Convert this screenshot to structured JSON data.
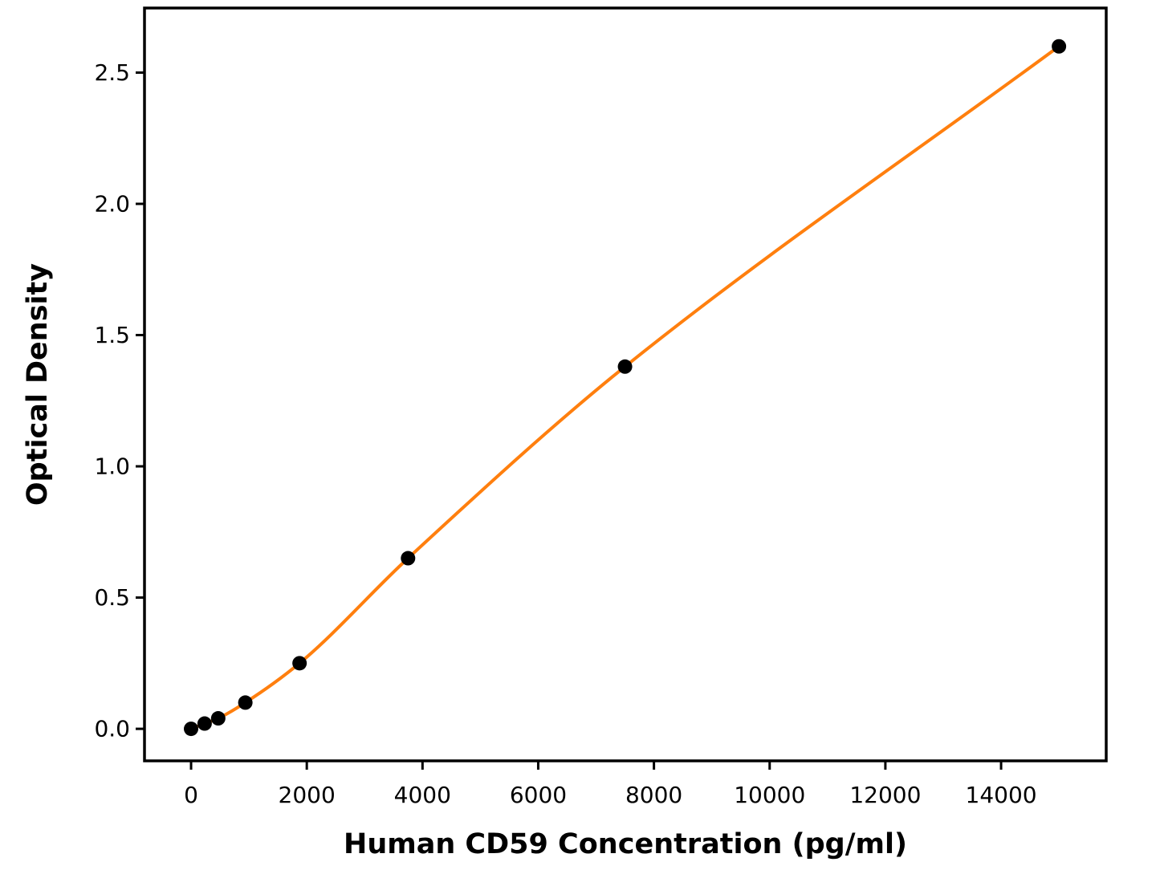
{
  "figure": {
    "background_color": "#ffffff",
    "axis_color": "#000000"
  },
  "chart_data": {
    "type": "scatter",
    "title": "",
    "xlabel": "Human CD59 Concentration (pg/ml)",
    "ylabel": "Optical Density",
    "x": [
      0,
      234,
      469,
      938,
      1875,
      3750,
      7500,
      15000
    ],
    "y": [
      0.0,
      0.02,
      0.04,
      0.1,
      0.25,
      0.65,
      1.38,
      2.6
    ],
    "series": [
      {
        "name": "standard-curve-fit",
        "style": "smooth-line",
        "color": "#ff7f0e"
      },
      {
        "name": "standard-points",
        "style": "scatter",
        "color": "#000000"
      }
    ],
    "marker_color": "#000000",
    "line_color": "#ff7f0e",
    "xlim": [
      -805,
      15817
    ],
    "ylim": [
      -0.122,
      2.746
    ],
    "x_ticks": [
      0,
      2000,
      4000,
      6000,
      8000,
      10000,
      12000,
      14000
    ],
    "x_tick_labels": [
      "0",
      "2000",
      "4000",
      "6000",
      "8000",
      "10000",
      "12000",
      "14000"
    ],
    "y_ticks": [
      0.0,
      0.5,
      1.0,
      1.5,
      2.0,
      2.5
    ],
    "y_tick_labels": [
      "0.0",
      "0.5",
      "1.0",
      "1.5",
      "2.0",
      "2.5"
    ],
    "grid": false,
    "legend": null
  }
}
